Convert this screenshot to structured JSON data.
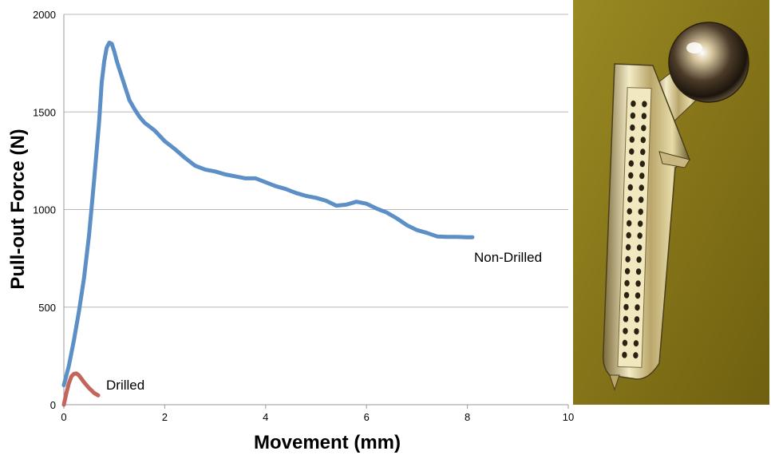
{
  "chart_data": {
    "type": "line",
    "xlabel": "Movement (mm)",
    "ylabel": "Pull-out Force (N)",
    "xlim": [
      0,
      10
    ],
    "ylim": [
      0,
      2000
    ],
    "x_ticks": [
      "0",
      "2",
      "4",
      "6",
      "8",
      "10"
    ],
    "y_ticks": [
      "0",
      "500",
      "1000",
      "1500",
      "2000"
    ],
    "grid": "horizontal",
    "series": [
      {
        "name": "Non-Drilled",
        "color": "#5b8fc6",
        "points": [
          [
            0.0,
            100
          ],
          [
            0.1,
            200
          ],
          [
            0.2,
            330
          ],
          [
            0.3,
            480
          ],
          [
            0.4,
            650
          ],
          [
            0.5,
            870
          ],
          [
            0.6,
            1150
          ],
          [
            0.7,
            1450
          ],
          [
            0.75,
            1650
          ],
          [
            0.8,
            1760
          ],
          [
            0.85,
            1830
          ],
          [
            0.9,
            1855
          ],
          [
            0.95,
            1850
          ],
          [
            1.0,
            1810
          ],
          [
            1.05,
            1760
          ],
          [
            1.1,
            1720
          ],
          [
            1.2,
            1640
          ],
          [
            1.3,
            1560
          ],
          [
            1.4,
            1515
          ],
          [
            1.5,
            1475
          ],
          [
            1.6,
            1445
          ],
          [
            1.8,
            1405
          ],
          [
            2.0,
            1350
          ],
          [
            2.2,
            1310
          ],
          [
            2.4,
            1265
          ],
          [
            2.6,
            1225
          ],
          [
            2.8,
            1205
          ],
          [
            3.0,
            1195
          ],
          [
            3.2,
            1180
          ],
          [
            3.4,
            1170
          ],
          [
            3.6,
            1160
          ],
          [
            3.8,
            1160
          ],
          [
            4.0,
            1140
          ],
          [
            4.2,
            1120
          ],
          [
            4.4,
            1105
          ],
          [
            4.6,
            1085
          ],
          [
            4.8,
            1070
          ],
          [
            5.0,
            1060
          ],
          [
            5.2,
            1045
          ],
          [
            5.4,
            1020
          ],
          [
            5.6,
            1025
          ],
          [
            5.8,
            1040
          ],
          [
            6.0,
            1030
          ],
          [
            6.2,
            1005
          ],
          [
            6.4,
            985
          ],
          [
            6.6,
            955
          ],
          [
            6.8,
            920
          ],
          [
            7.0,
            895
          ],
          [
            7.2,
            880
          ],
          [
            7.4,
            862
          ],
          [
            7.6,
            860
          ],
          [
            7.8,
            860
          ],
          [
            8.0,
            858
          ],
          [
            8.1,
            858
          ]
        ]
      },
      {
        "name": "Drilled",
        "color": "#c2655a",
        "points": [
          [
            0.0,
            0
          ],
          [
            0.05,
            60
          ],
          [
            0.1,
            110
          ],
          [
            0.15,
            145
          ],
          [
            0.2,
            158
          ],
          [
            0.25,
            160
          ],
          [
            0.3,
            150
          ],
          [
            0.4,
            115
          ],
          [
            0.5,
            85
          ],
          [
            0.6,
            60
          ],
          [
            0.68,
            48
          ]
        ]
      }
    ]
  },
  "photo": {
    "background": "#8a7a1c",
    "metal": "#d8c896"
  }
}
